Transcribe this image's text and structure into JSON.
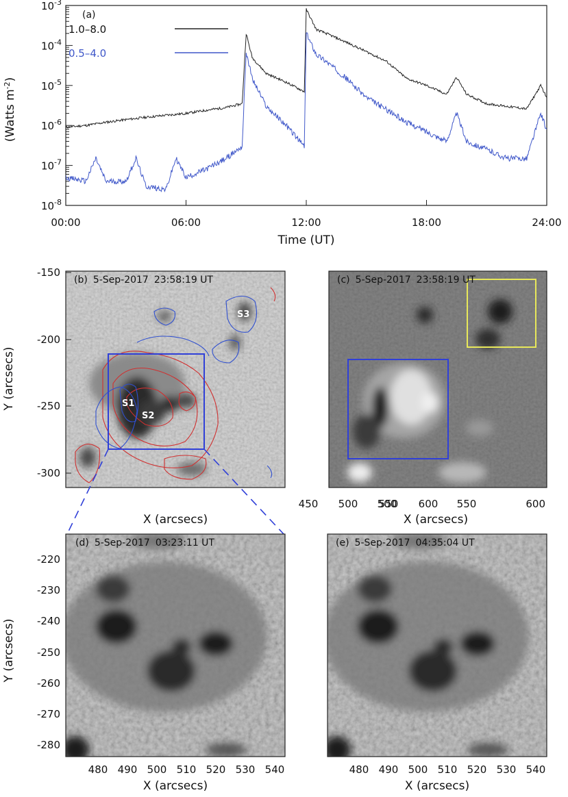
{
  "chart_data": [
    {
      "panel": "(a)",
      "type": "line",
      "xlabel": "Time (UT)",
      "ylabel": "(Watts m",
      "ylabel_sup": "-2",
      "ylabel_close": ")",
      "x_ticks": [
        "00:00",
        "06:00",
        "12:00",
        "18:00",
        "24:00"
      ],
      "y_ticks": [
        {
          "base": "10",
          "exp": "-3"
        },
        {
          "base": "10",
          "exp": "-4"
        },
        {
          "base": "10",
          "exp": "-5"
        },
        {
          "base": "10",
          "exp": "-6"
        },
        {
          "base": "10",
          "exp": "-7"
        },
        {
          "base": "10",
          "exp": "-8"
        }
      ],
      "xlim_hours": [
        0,
        24
      ],
      "ylim": [
        1e-08,
        0.001
      ],
      "yscale": "log",
      "legend_position": "top-left",
      "series": [
        {
          "name": "1.0–8.0",
          "color": "#222222",
          "points": [
            [
              0,
              9e-07
            ],
            [
              1,
              1e-06
            ],
            [
              2,
              1.2e-06
            ],
            [
              3,
              1.4e-06
            ],
            [
              4,
              1.6e-06
            ],
            [
              5,
              1.8e-06
            ],
            [
              6,
              2e-06
            ],
            [
              7,
              2.4e-06
            ],
            [
              8,
              2.8e-06
            ],
            [
              8.8,
              3.5e-06
            ],
            [
              9.0,
              0.0002
            ],
            [
              9.3,
              5e-05
            ],
            [
              10,
              2e-05
            ],
            [
              11,
              1.2e-05
            ],
            [
              11.9,
              7e-06
            ],
            [
              12.0,
              0.0008
            ],
            [
              12.5,
              0.00025
            ],
            [
              13,
              0.0002
            ],
            [
              14,
              0.00012
            ],
            [
              15,
              7e-05
            ],
            [
              16,
              4e-05
            ],
            [
              17,
              1.5e-05
            ],
            [
              18,
              1e-05
            ],
            [
              19,
              6e-06
            ],
            [
              19.5,
              1.6e-05
            ],
            [
              20,
              6e-06
            ],
            [
              21,
              3.5e-06
            ],
            [
              22,
              3e-06
            ],
            [
              23,
              2.6e-06
            ],
            [
              23.7,
              1e-05
            ],
            [
              24,
              5e-06
            ]
          ]
        },
        {
          "name": "0.5–4.0",
          "color": "#3f57c9",
          "points": [
            [
              0,
              5e-08
            ],
            [
              1,
              4e-08
            ],
            [
              1.5,
              1.5e-07
            ],
            [
              2,
              4e-08
            ],
            [
              3,
              4e-08
            ],
            [
              3.5,
              1.5e-07
            ],
            [
              4,
              3e-08
            ],
            [
              5,
              2.5e-08
            ],
            [
              5.5,
              1.5e-07
            ],
            [
              6,
              5e-08
            ],
            [
              7,
              8e-08
            ],
            [
              8,
              1.5e-07
            ],
            [
              8.8,
              3e-07
            ],
            [
              9.0,
              7e-05
            ],
            [
              9.3,
              1.5e-05
            ],
            [
              10,
              3e-06
            ],
            [
              11,
              1e-06
            ],
            [
              11.9,
              3e-07
            ],
            [
              12.0,
              0.0002
            ],
            [
              12.5,
              6e-05
            ],
            [
              13,
              4e-05
            ],
            [
              14,
              1.5e-05
            ],
            [
              15,
              5e-06
            ],
            [
              16,
              2.5e-06
            ],
            [
              17,
              1.2e-06
            ],
            [
              18,
              7e-07
            ],
            [
              19,
              4e-07
            ],
            [
              19.5,
              2e-06
            ],
            [
              20,
              4e-07
            ],
            [
              21,
              2.5e-07
            ],
            [
              22,
              1.5e-07
            ],
            [
              23,
              1.5e-07
            ],
            [
              23.7,
              2e-06
            ],
            [
              24,
              8e-07
            ]
          ]
        }
      ]
    }
  ],
  "panels": {
    "b": {
      "label": "(b)",
      "date": "5-Sep-2017",
      "time": "23:58:19 UT",
      "xlabel": "X (arcsecs)",
      "ylabel": "Y (arcsecs)",
      "x_ticks": [
        "450",
        "500",
        "550",
        "600"
      ],
      "y_ticks": [
        "-150",
        "-200",
        "-250",
        "-300"
      ],
      "spots": [
        "S1",
        "S2",
        "S3"
      ]
    },
    "c": {
      "label": "(c)",
      "date": "5-Sep-2017",
      "time": "23:58:19 UT",
      "xlabel": "X (arcsecs)",
      "x_ticks": [
        "500",
        "550",
        "600"
      ]
    },
    "d": {
      "label": "(d)",
      "date": "5-Sep-2017",
      "time": "03:23:11 UT",
      "xlabel": "X (arcsecs)",
      "ylabel": "Y (arcsecs)",
      "x_ticks": [
        "480",
        "490",
        "500",
        "510",
        "520",
        "530",
        "540"
      ],
      "y_ticks": [
        "-220",
        "-230",
        "-240",
        "-250",
        "-260",
        "-270",
        "-280"
      ]
    },
    "e": {
      "label": "(e)",
      "date": "5-Sep-2017",
      "time": "04:35:04 UT",
      "xlabel": "X (arcsecs)",
      "x_ticks": [
        "480",
        "490",
        "500",
        "510",
        "520",
        "530",
        "540"
      ]
    }
  },
  "colors": {
    "contour_red": "#d03030",
    "contour_blue": "#2f4fd0",
    "box_blue": "#2f3fd8",
    "box_yellow": "#e8e85a"
  }
}
